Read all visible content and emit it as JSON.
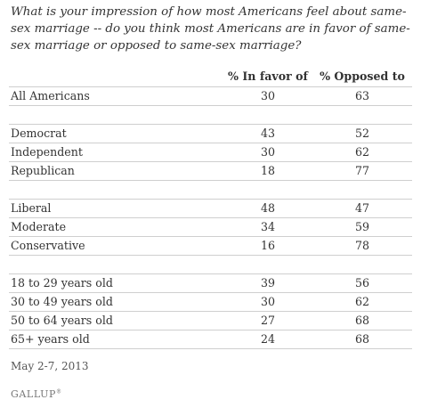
{
  "question": "What is your impression of how most Americans feel about same-sex marriage -- do you think most Americans are in favor of same-sex marriage or opposed to same-sex marriage?",
  "footnote": "May 2-7, 2013",
  "brand": "GALLUP",
  "brand_mark": "®",
  "chart_data": {
    "type": "table",
    "columns": [
      "% In favor of",
      "% Opposed to"
    ],
    "groups": [
      {
        "rows": [
          {
            "label": "All Americans",
            "values": [
              "30",
              "63"
            ]
          }
        ]
      },
      {
        "rows": [
          {
            "label": "Democrat",
            "values": [
              "43",
              "52"
            ]
          },
          {
            "label": "Independent",
            "values": [
              "30",
              "62"
            ]
          },
          {
            "label": "Republican",
            "values": [
              "18",
              "77"
            ]
          }
        ]
      },
      {
        "rows": [
          {
            "label": "Liberal",
            "values": [
              "48",
              "47"
            ]
          },
          {
            "label": "Moderate",
            "values": [
              "34",
              "59"
            ]
          },
          {
            "label": "Conservative",
            "values": [
              "16",
              "78"
            ]
          }
        ]
      },
      {
        "rows": [
          {
            "label": "18 to 29 years old",
            "values": [
              "39",
              "56"
            ]
          },
          {
            "label": "30 to 49 years old",
            "values": [
              "30",
              "62"
            ]
          },
          {
            "label": "50 to 64 years old",
            "values": [
              "27",
              "68"
            ]
          },
          {
            "label": "65+ years old",
            "values": [
              "24",
              "68"
            ]
          }
        ]
      }
    ]
  }
}
